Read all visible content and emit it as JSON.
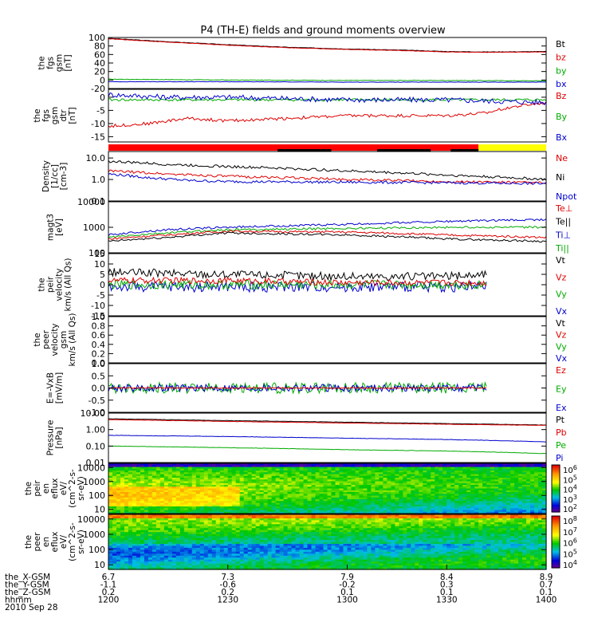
{
  "chart_data": {
    "type": "line",
    "title": "P4 (TH-E) fields and ground moments overview",
    "panels": [
      {
        "ylabel": [
          "the",
          "fgs",
          "gsm",
          "[nT]"
        ],
        "ylim": [
          -20,
          100
        ],
        "yticks": [
          100,
          80,
          60,
          40,
          20,
          0,
          -20
        ],
        "scale": "linear",
        "legend": [
          "Bt",
          "bz",
          "by",
          "bx"
        ],
        "legend_colors": [
          "#000000",
          "#dd0000",
          "#00aa00",
          "#0000cc"
        ],
        "series": [
          {
            "name": "Bt",
            "color": "#000000",
            "x": [
              6.7,
              7.0,
              7.3,
              7.6,
              7.9,
              8.2,
              8.4,
              8.6,
              8.9
            ],
            "y": [
              98,
              90,
              83,
              77,
              73,
              70,
              67,
              66,
              67
            ],
            "noise": 0.5
          },
          {
            "name": "bz",
            "color": "#dd0000",
            "x": [
              6.7,
              7.0,
              7.3,
              7.6,
              7.9,
              8.2,
              8.4,
              8.6,
              8.9
            ],
            "y": [
              97,
              89,
              82,
              76,
              72,
              69,
              66,
              65,
              66
            ],
            "noise": 0.5
          },
          {
            "name": "by",
            "color": "#00aa00",
            "x": [
              6.7,
              7.3,
              7.9,
              8.4,
              8.9
            ],
            "y": [
              2,
              0,
              -1,
              -1,
              -2
            ],
            "noise": 0.6
          },
          {
            "name": "bx",
            "color": "#0000cc",
            "x": [
              6.7,
              7.3,
              7.9,
              8.4,
              8.9
            ],
            "y": [
              -4,
              -4,
              -5,
              -5,
              -5
            ],
            "noise": 0.4
          }
        ]
      },
      {
        "ylabel": [
          "the",
          "fgs",
          "gsm",
          "dtr",
          "[nT]"
        ],
        "ylim": [
          -17,
          3
        ],
        "yticks": [
          0,
          -5,
          -10,
          -15
        ],
        "scale": "linear",
        "legend": [
          "Bz",
          "By",
          "Bx"
        ],
        "legend_colors": [
          "#dd0000",
          "#00aa00",
          "#0000cc"
        ],
        "series": [
          {
            "name": "Bz",
            "color": "#dd0000",
            "x": [
              6.7,
              6.9,
              7.1,
              7.3,
              7.6,
              7.9,
              8.2,
              8.4,
              8.6,
              8.7,
              8.8,
              8.9
            ],
            "y": [
              -11,
              -10,
              -8,
              -9,
              -8,
              -7,
              -7,
              -7,
              -6,
              -4,
              -3,
              -2
            ],
            "noise": 0.6
          },
          {
            "name": "By",
            "color": "#00aa00",
            "x": [
              6.7,
              7.3,
              7.9,
              8.4,
              8.9
            ],
            "y": [
              -1,
              -1,
              -1,
              -1,
              -1
            ],
            "noise": 0.5
          },
          {
            "name": "Bx",
            "color": "#0000cc",
            "x": [
              6.7,
              7.0,
              7.3,
              7.9,
              8.4,
              8.9
            ],
            "y": [
              1,
              0,
              0,
              -1,
              -1,
              -2
            ],
            "noise": 1.0
          }
        ]
      },
      {
        "ylabel": [
          "Density",
          "[1/cc]",
          "[cm-3]"
        ],
        "ylim": [
          0.1,
          20
        ],
        "yticks": [
          10.0,
          1.0,
          0.1
        ],
        "ytick_labels": [
          "10.0",
          "1.0",
          "0.1"
        ],
        "scale": "log",
        "legend": [
          "Ne",
          "Ni",
          "Npot"
        ],
        "legend_colors": [
          "#dd0000",
          "#000000",
          "#0000cc"
        ],
        "series": [
          {
            "name": "Ni",
            "color": "#000000",
            "x": [
              6.7,
              7.0,
              7.3,
              7.9,
              8.4,
              8.9
            ],
            "y": [
              7,
              5,
              4,
              2.5,
              1.6,
              1.0
            ],
            "noise": 0.06
          },
          {
            "name": "Ne",
            "color": "#dd0000",
            "x": [
              6.7,
              7.0,
              7.3,
              7.9,
              8.4,
              8.9
            ],
            "y": [
              2.5,
              1.8,
              1.4,
              1.0,
              0.8,
              0.7
            ],
            "noise": 0.06
          },
          {
            "name": "Npot",
            "color": "#0000cc",
            "x": [
              6.7,
              6.9,
              7.1,
              7.3,
              7.9,
              8.4,
              8.9
            ],
            "y": [
              1.8,
              1.2,
              0.9,
              0.8,
              0.75,
              0.7,
              0.65
            ],
            "noise": 0.06
          }
        ]
      },
      {
        "ylabel": [
          "magt3",
          "[eV]"
        ],
        "ylim": [
          100,
          10000
        ],
        "yticks": [
          10000,
          1000,
          100
        ],
        "ytick_labels": [
          "10000",
          "1000",
          "100"
        ],
        "scale": "log",
        "legend": [
          "Te⊥",
          "Te||",
          "Ti⊥",
          "Ti||"
        ],
        "legend_colors": [
          "#dd0000",
          "#000000",
          "#0000cc",
          "#00aa00"
        ],
        "series": [
          {
            "name": "Ti⊥",
            "color": "#0000cc",
            "x": [
              6.7,
              7.0,
              7.3,
              7.9,
              8.4,
              8.9
            ],
            "y": [
              500,
              800,
              1000,
              1300,
              1700,
              2000
            ],
            "noise": 0.04
          },
          {
            "name": "Ti||",
            "color": "#00aa00",
            "x": [
              6.7,
              7.0,
              7.3,
              7.9,
              8.4,
              8.9
            ],
            "y": [
              400,
              600,
              800,
              900,
              1000,
              1000
            ],
            "noise": 0.04
          },
          {
            "name": "Te⊥",
            "color": "#dd0000",
            "x": [
              6.7,
              7.0,
              7.3,
              7.9,
              8.4,
              8.9
            ],
            "y": [
              350,
              500,
              700,
              650,
              500,
              400
            ],
            "noise": 0.04
          },
          {
            "name": "Te||",
            "color": "#000000",
            "x": [
              6.7,
              7.0,
              7.3,
              7.9,
              8.4,
              8.9
            ],
            "y": [
              280,
              400,
              600,
              500,
              350,
              280
            ],
            "noise": 0.04
          }
        ]
      },
      {
        "ylabel": [
          "the",
          "peir",
          "velocity",
          "km/s (All Qs)"
        ],
        "ylim": [
          -15,
          15
        ],
        "yticks": [
          15,
          10,
          5,
          0,
          -5,
          -10,
          -15
        ],
        "scale": "linear",
        "legend": [
          "Vt",
          "Vz",
          "Vy",
          "Vx"
        ],
        "legend_colors": [
          "#000000",
          "#dd0000",
          "#00aa00",
          "#0000cc"
        ],
        "series": [
          {
            "name": "Vt",
            "color": "#000000",
            "x": [
              6.7,
              7.3,
              7.9,
              8.4,
              8.6
            ],
            "y": [
              6,
              5,
              4,
              4,
              5
            ],
            "noise": 2.0
          },
          {
            "name": "Vx",
            "color": "#0000cc",
            "x": [
              6.7,
              7.3,
              7.9,
              8.4,
              8.6
            ],
            "y": [
              -1,
              -1,
              -1,
              -1,
              -1
            ],
            "noise": 2.5
          },
          {
            "name": "Vy",
            "color": "#00aa00",
            "x": [
              6.7,
              7.3,
              7.9,
              8.4,
              8.6
            ],
            "y": [
              0,
              0,
              0,
              0,
              0
            ],
            "noise": 2.2
          },
          {
            "name": "Vz",
            "color": "#dd0000",
            "x": [
              6.7,
              7.3,
              7.9,
              8.4,
              8.6
            ],
            "y": [
              2,
              2,
              1,
              1,
              1
            ],
            "noise": 1.5
          }
        ]
      },
      {
        "ylabel": [
          "the",
          "peer",
          "velocity",
          "gsm",
          "km/s (All Qs)"
        ],
        "ylim": [
          0,
          1.0
        ],
        "yticks": [
          1.0,
          0.8,
          0.6,
          0.4,
          0.2,
          0.0
        ],
        "ytick_labels": [
          "1.0",
          "0.8",
          "0.6",
          "0.4",
          "0.2",
          "0.0"
        ],
        "scale": "linear",
        "legend": [
          "Vt",
          "Vz",
          "Vy",
          "Vx"
        ],
        "legend_colors": [
          "#000000",
          "#dd0000",
          "#00aa00",
          "#0000cc"
        ],
        "series": []
      },
      {
        "ylabel": [
          "E=-VxB",
          "[mV/m]"
        ],
        "ylim": [
          -1.0,
          1.0
        ],
        "yticks": [
          1.0,
          0.5,
          0.0,
          -0.5,
          -1.0
        ],
        "ytick_labels": [
          "1.0",
          "0.5",
          "0.0",
          "-0.5",
          "-1.0"
        ],
        "scale": "linear",
        "legend": [
          "Ez",
          "Ey",
          "Ex"
        ],
        "legend_colors": [
          "#dd0000",
          "#00aa00",
          "#0000cc"
        ],
        "series": [
          {
            "name": "Ey",
            "color": "#00aa00",
            "x": [
              6.7,
              7.3,
              7.9,
              8.4,
              8.6
            ],
            "y": [
              0,
              0,
              0,
              0,
              0
            ],
            "noise": 0.22
          },
          {
            "name": "Ex",
            "color": "#0000cc",
            "x": [
              6.7,
              7.3,
              7.9,
              8.4,
              8.6
            ],
            "y": [
              0,
              0,
              0,
              0,
              0
            ],
            "noise": 0.15
          },
          {
            "name": "Ez",
            "color": "#dd0000",
            "x": [
              6.7,
              7.3,
              7.9,
              8.4,
              8.6
            ],
            "y": [
              0,
              0,
              0,
              0,
              0
            ],
            "noise": 0.02
          }
        ]
      },
      {
        "ylabel": [
          "Pressure",
          "[nPa]"
        ],
        "ylim": [
          0.01,
          10
        ],
        "yticks": [
          10.0,
          1.0,
          0.1,
          0.01
        ],
        "ytick_labels": [
          "10.00",
          "1.00",
          "0.10",
          "0.01"
        ],
        "scale": "log",
        "legend": [
          "Pt",
          "Pb",
          "Pe",
          "Pi"
        ],
        "legend_colors": [
          "#000000",
          "#dd0000",
          "#00aa00",
          "#0000cc"
        ],
        "series": [
          {
            "name": "Pt",
            "color": "#000000",
            "x": [
              6.7,
              7.3,
              7.9,
              8.4,
              8.9
            ],
            "y": [
              4.5,
              3.5,
              2.8,
              2.3,
              1.9
            ],
            "noise": 0.01
          },
          {
            "name": "Pb",
            "color": "#dd0000",
            "x": [
              6.7,
              7.3,
              7.9,
              8.4,
              8.9
            ],
            "y": [
              4.0,
              3.1,
              2.5,
              2.1,
              1.8
            ],
            "noise": 0.01
          },
          {
            "name": "Pi",
            "color": "#0000cc",
            "x": [
              6.7,
              7.3,
              7.9,
              8.4,
              8.9
            ],
            "y": [
              0.45,
              0.38,
              0.3,
              0.25,
              0.18
            ],
            "noise": 0.01
          },
          {
            "name": "Pe",
            "color": "#00aa00",
            "x": [
              6.7,
              7.3,
              7.9,
              8.4,
              8.9
            ],
            "y": [
              0.1,
              0.08,
              0.06,
              0.05,
              0.035
            ],
            "noise": 0.01
          }
        ]
      },
      {
        "ylabel": [
          "the",
          "peir",
          "en",
          "eflux",
          "eV/",
          "(cm^2-s-",
          "sr-eV)"
        ],
        "ylim": [
          5,
          20000
        ],
        "yticks": [
          10000,
          1000,
          100,
          10
        ],
        "ytick_labels": [
          "10000",
          "1000",
          "100",
          "10"
        ],
        "scale": "log",
        "type": "heatmap",
        "colorbar": {
          "ticks": [
            "10^6",
            "10^5",
            "10^4",
            "10^3",
            "10^2"
          ],
          "range_exp": [
            1.7,
            6.5
          ]
        },
        "legend": [],
        "series": []
      },
      {
        "ylabel": [
          "the",
          "peer",
          "en",
          "eflux",
          "eV/",
          "(cm^2-s-",
          "sr-eV)"
        ],
        "ylim": [
          5,
          20000
        ],
        "yticks": [
          10000,
          1000,
          100,
          10
        ],
        "ytick_labels": [
          "10000",
          "1000",
          "100",
          "10"
        ],
        "scale": "log",
        "type": "heatmap",
        "colorbar": {
          "ticks": [
            "10^8",
            "10^7",
            "10^6",
            "10^5",
            "10^4"
          ],
          "range_exp": [
            3.5,
            8.2
          ]
        },
        "legend": [],
        "series": []
      }
    ],
    "status_bar": {
      "segments": [
        {
          "x0": 6.7,
          "x1": 8.56,
          "color": "#ff0000"
        },
        {
          "x0": 8.56,
          "x1": 8.9,
          "color": "#ffff00"
        }
      ],
      "black_segments": [
        [
          7.55,
          7.82
        ],
        [
          8.05,
          8.32
        ],
        [
          8.42,
          8.56
        ]
      ]
    },
    "xaxis": {
      "xlim": [
        6.7,
        8.9
      ],
      "ticks": [
        {
          "x": 6.7,
          "labels": [
            "6.7",
            "-1.1",
            "0.2",
            "1200"
          ]
        },
        {
          "x": 7.3,
          "labels": [
            "7.3",
            "-0.6",
            "0.2",
            "1230"
          ]
        },
        {
          "x": 7.9,
          "labels": [
            "7.9",
            "-0.2",
            "0.1",
            "1300"
          ]
        },
        {
          "x": 8.4,
          "labels": [
            "8.4",
            "0.3",
            "0.1",
            "1330"
          ]
        },
        {
          "x": 8.9,
          "labels": [
            "8.9",
            "0.7",
            "0.1",
            "1400"
          ]
        }
      ],
      "row_labels": [
        "the_X-GSM",
        "the_Y-GSM",
        "the_Z-GSM",
        "hhmm"
      ],
      "date": "2010 Sep 28"
    }
  }
}
